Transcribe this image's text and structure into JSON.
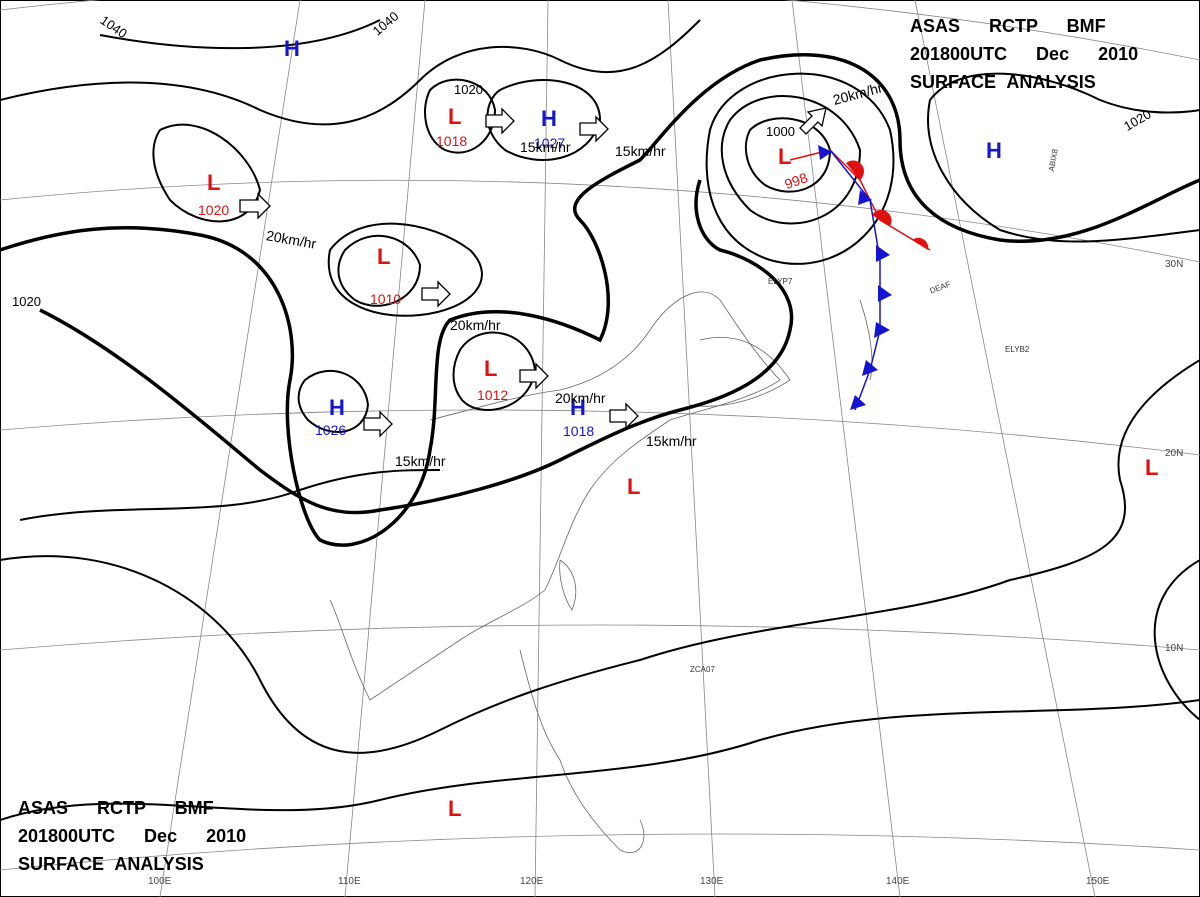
{
  "header": {
    "line1": "ASAS RCTP BMF",
    "line2": "201800UTC Dec 2010",
    "line3": "SURFACE ANALYSIS"
  },
  "centers": [
    {
      "type": "H"
    },
    {
      "type": "L",
      "pressure": 1020
    },
    {
      "type": "L",
      "pressure": 1018
    },
    {
      "type": "H",
      "pressure": 1027
    },
    {
      "type": "L",
      "pressure": 998
    },
    {
      "type": "H"
    },
    {
      "type": "L",
      "pressure": 1010
    },
    {
      "type": "L",
      "pressure": 1012
    },
    {
      "type": "H",
      "pressure": 1026
    },
    {
      "type": "H",
      "pressure": 1018
    },
    {
      "type": "L"
    },
    {
      "type": "L"
    },
    {
      "type": "L"
    }
  ],
  "isobar_labels": [
    1040,
    1040,
    1020,
    1020,
    1020,
    1000
  ],
  "motion_labels": [
    "20km/hr",
    "15km/hr",
    "15km/hr",
    "20km/hr",
    "20km/hr",
    "20km/hr",
    "15km/hr",
    "15km/hr"
  ],
  "grid_labels": [
    "30N",
    "20N",
    "10N",
    "100E",
    "110E",
    "120E",
    "130E",
    "140E",
    "150E"
  ],
  "station_ids": [
    "ELYP7",
    "ABIX8",
    "DEAF",
    "ELYB2",
    "ZCA07"
  ]
}
